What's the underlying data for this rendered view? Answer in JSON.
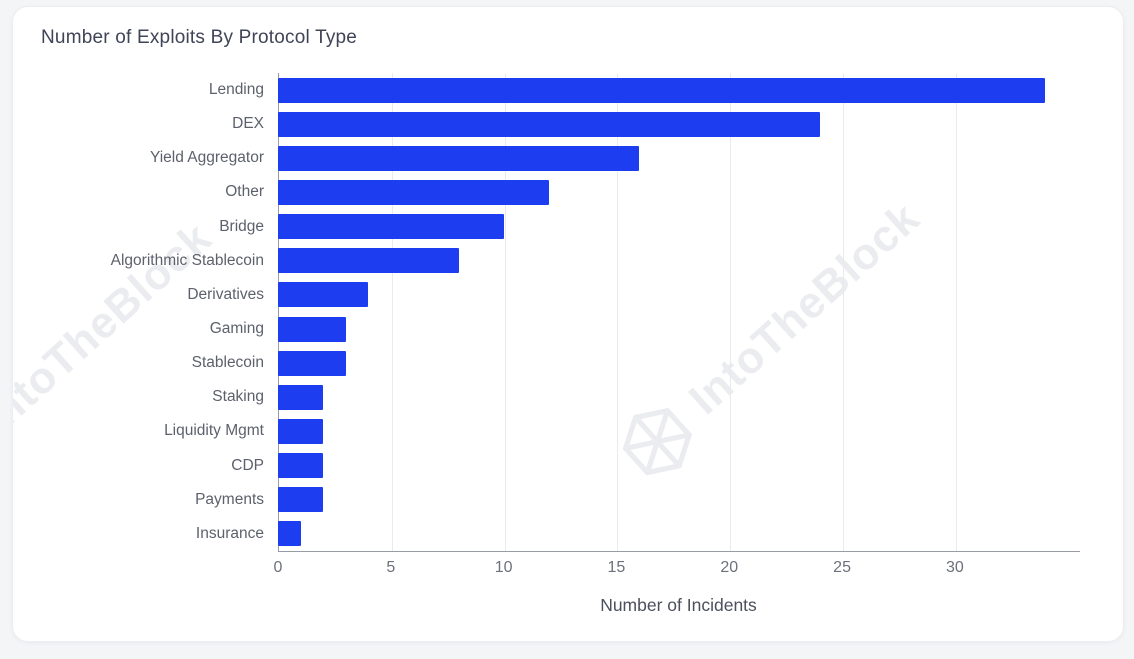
{
  "watermark": {
    "text": "IntoTheBlock",
    "color": "#ebecef"
  },
  "colors": {
    "bar": "#1d3ef0",
    "title_text": "#3f4457",
    "category_text": "#5d616c",
    "tick_text": "#6d717b",
    "axis_line": "#979ca6",
    "gridline": "#e9eaee",
    "card_bg": "#ffffff",
    "page_bg": "#f4f5f7"
  },
  "chart_data": {
    "type": "bar",
    "orientation": "horizontal",
    "title": "Number of Exploits By Protocol Type",
    "xlabel": "Number of Incidents",
    "ylabel": "",
    "categories": [
      "Lending",
      "DEX",
      "Yield Aggregator",
      "Other",
      "Bridge",
      "Algorithmic Stablecoin",
      "Derivatives",
      "Gaming",
      "Stablecoin",
      "Staking",
      "Liquidity Mgmt",
      "CDP",
      "Payments",
      "Insurance"
    ],
    "values": [
      34,
      24,
      16,
      12,
      10,
      8,
      4,
      3,
      3,
      2,
      2,
      2,
      2,
      1
    ],
    "xticks": [
      0,
      5,
      10,
      15,
      20,
      25,
      30
    ],
    "xlim": [
      0,
      35.5
    ],
    "grid": true,
    "legend": "none",
    "bar_color": "#1d3ef0"
  }
}
